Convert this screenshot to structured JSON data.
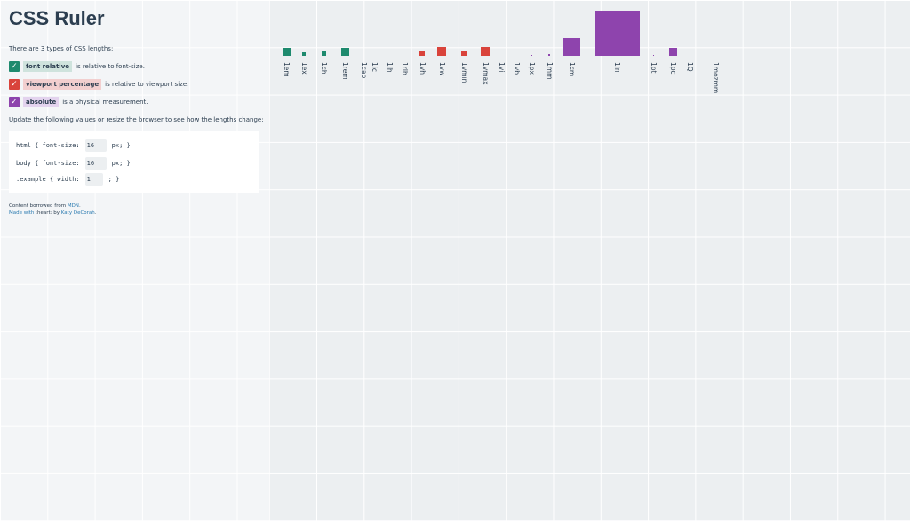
{
  "header": {
    "title": "CSS Ruler"
  },
  "intro": "There are 3 types of CSS lengths:",
  "types": [
    {
      "label": "font relative",
      "text": "is relative to font-size."
    },
    {
      "label": "viewport percentage",
      "text": "is relative to viewport size."
    },
    {
      "label": "absolute",
      "text": "is a physical measurement."
    }
  ],
  "update": "Update the following values or resize the browser to see how the lengths change:",
  "code": [
    [
      "html { font-size:",
      "16",
      "px; }"
    ],
    [
      "body { font-size:",
      "16",
      "px; }"
    ],
    [
      ".example { width:",
      "1",
      "; }"
    ]
  ],
  "footer": {
    "line1": [
      "Content borrowed from",
      "MDN",
      "."
    ],
    "line2": [
      "Made with",
      ":heart:",
      "by",
      "Katy DeCorah",
      "."
    ]
  },
  "units": [
    "1em",
    "1ex",
    "1ch",
    "1rem",
    "1cap",
    "1ic",
    "1lh",
    "1rlh",
    "1vh",
    "1vw",
    "1vmin",
    "1vmax",
    "1vi",
    "1vb",
    "1px",
    "1mm",
    "1cm",
    "1in",
    "1pt",
    "1pc",
    "1Q",
    "1mozmm"
  ]
}
